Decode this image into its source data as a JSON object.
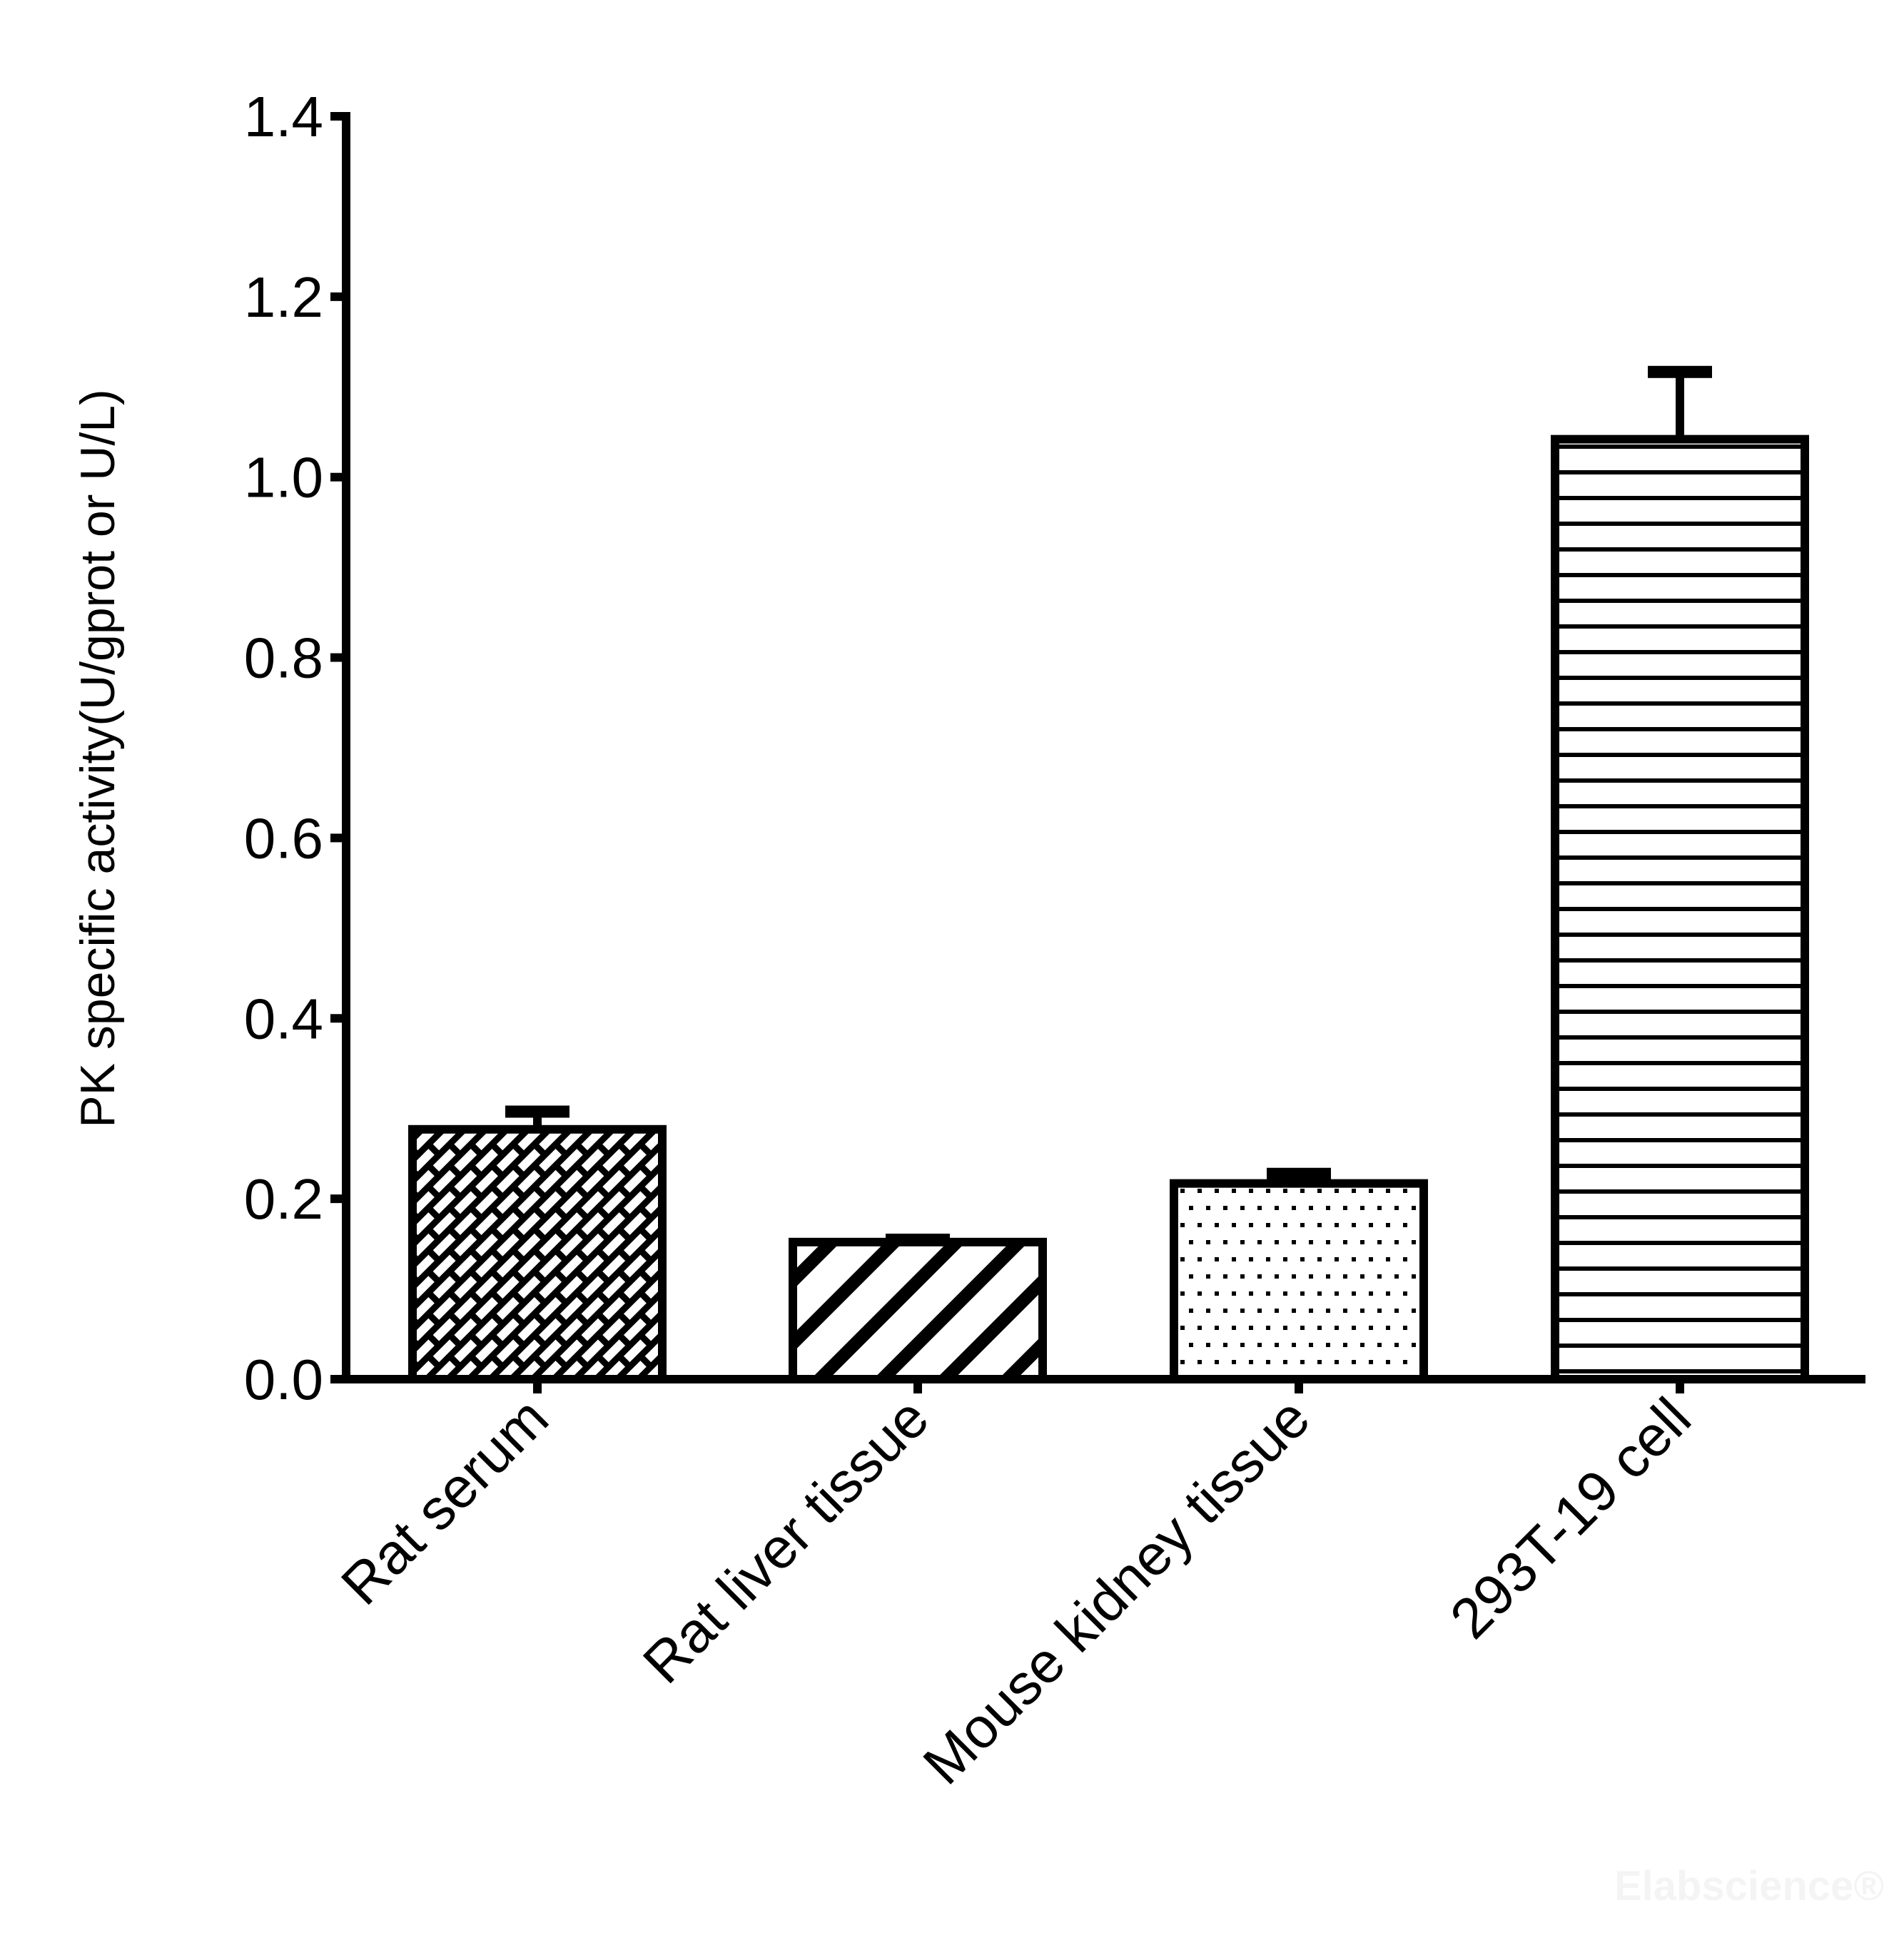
{
  "chart_data": {
    "type": "bar",
    "title": "",
    "xlabel": "",
    "ylabel": "PK specific activity(U/gprot or U/L)",
    "ylim": [
      0,
      1.4
    ],
    "yticks": [
      "0.0",
      "0.2",
      "0.4",
      "0.6",
      "0.8",
      "1.0",
      "1.2",
      "1.4"
    ],
    "grid": false,
    "legend": null,
    "categories": [
      "Rat serum",
      "Rat liver tissue",
      "Mouse kidney tissue",
      "293T-19 cell"
    ],
    "values": [
      0.277,
      0.152,
      0.217,
      1.042
    ],
    "error_upper": [
      0.02,
      0.003,
      0.011,
      0.075
    ],
    "fill_patterns": [
      "brick-diagonal",
      "thick-diagonal-stripes",
      "dots",
      "horizontal-lines"
    ]
  },
  "watermark": "Elabscience®",
  "colors": {
    "ink": "#000000",
    "background": "#ffffff",
    "watermark": "#f4f4f4"
  }
}
